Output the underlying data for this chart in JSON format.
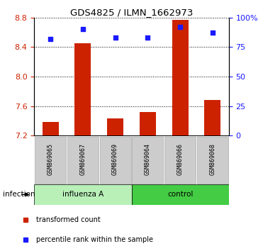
{
  "title": "GDS4825 / ILMN_1662973",
  "categories": [
    "GSM869065",
    "GSM869067",
    "GSM869069",
    "GSM869064",
    "GSM869066",
    "GSM869068"
  ],
  "red_values": [
    7.38,
    8.45,
    7.43,
    7.52,
    8.77,
    7.68
  ],
  "blue_values": [
    82,
    90,
    83,
    83,
    92,
    87
  ],
  "ylim_left": [
    7.2,
    8.8
  ],
  "ylim_right": [
    0,
    100
  ],
  "yticks_left": [
    7.2,
    7.6,
    8.0,
    8.4,
    8.8
  ],
  "yticks_right": [
    0,
    25,
    50,
    75,
    100
  ],
  "ytick_labels_right": [
    "0",
    "25",
    "50",
    "75",
    "100%"
  ],
  "group1_label": "influenza A",
  "group2_label": "control",
  "infection_label": "infection",
  "legend_red": "transformed count",
  "legend_blue": "percentile rank within the sample",
  "bar_color": "#cc2200",
  "dot_color": "#1a1aff",
  "group1_color": "#b8f0b8",
  "group2_color": "#44cc44",
  "bar_width": 0.5,
  "base_value": 7.2,
  "n_group1": 3,
  "n_group2": 3
}
